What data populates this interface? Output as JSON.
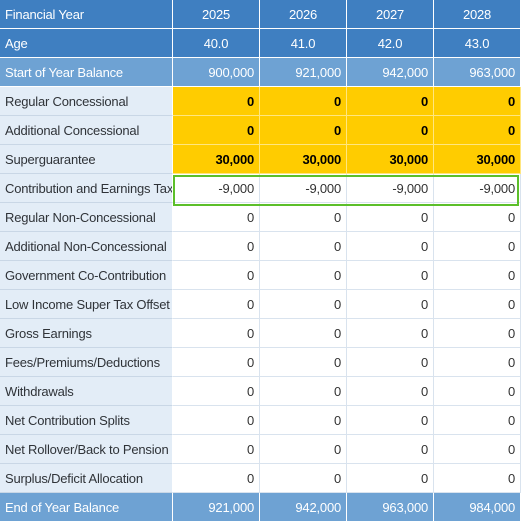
{
  "table": {
    "header": {
      "label": "Financial Year",
      "years": [
        "2025",
        "2026",
        "2027",
        "2028"
      ]
    },
    "age": {
      "label": "Age",
      "values": [
        "40.0",
        "41.0",
        "42.0",
        "43.0"
      ]
    },
    "start_balance": {
      "label": "Start of Year Balance",
      "values": [
        "900,000",
        "921,000",
        "942,000",
        "963,000"
      ]
    },
    "rows": [
      {
        "label": "Regular Concessional",
        "values": [
          "0",
          "0",
          "0",
          "0"
        ]
      },
      {
        "label": "Additional Concessional",
        "values": [
          "0",
          "0",
          "0",
          "0"
        ]
      },
      {
        "label": "Superguarantee",
        "values": [
          "30,000",
          "30,000",
          "30,000",
          "30,000"
        ]
      },
      {
        "label": "Contribution and Earnings Tax",
        "values": [
          "-9,000",
          "-9,000",
          "-9,000",
          "-9,000"
        ]
      },
      {
        "label": "Regular Non-Concessional",
        "values": [
          "0",
          "0",
          "0",
          "0"
        ]
      },
      {
        "label": "Additional Non-Concessional",
        "values": [
          "0",
          "0",
          "0",
          "0"
        ]
      },
      {
        "label": "Government Co-Contribution",
        "values": [
          "0",
          "0",
          "0",
          "0"
        ]
      },
      {
        "label": "Low Income Super Tax Offset",
        "values": [
          "0",
          "0",
          "0",
          "0"
        ]
      },
      {
        "label": "Gross Earnings",
        "values": [
          "0",
          "0",
          "0",
          "0"
        ]
      },
      {
        "label": "Fees/Premiums/Deductions",
        "values": [
          "0",
          "0",
          "0",
          "0"
        ]
      },
      {
        "label": "Withdrawals",
        "values": [
          "0",
          "0",
          "0",
          "0"
        ]
      },
      {
        "label": "Net Contribution Splits",
        "values": [
          "0",
          "0",
          "0",
          "0"
        ]
      },
      {
        "label": "Net Rollover/Back to Pension",
        "values": [
          "0",
          "0",
          "0",
          "0"
        ]
      },
      {
        "label": "Surplus/Deficit Allocation",
        "values": [
          "0",
          "0",
          "0",
          "0"
        ]
      }
    ],
    "end_balance": {
      "label": "End of Year Balance",
      "values": [
        "921,000",
        "942,000",
        "963,000",
        "984,000"
      ]
    }
  },
  "colors": {
    "header_bg": "#3f7fc1",
    "subheader_bg": "#6ea2d3",
    "label_bg": "#e3edf7",
    "editable_bg": "#ffcc00",
    "selection_border": "#5cbf2a"
  }
}
